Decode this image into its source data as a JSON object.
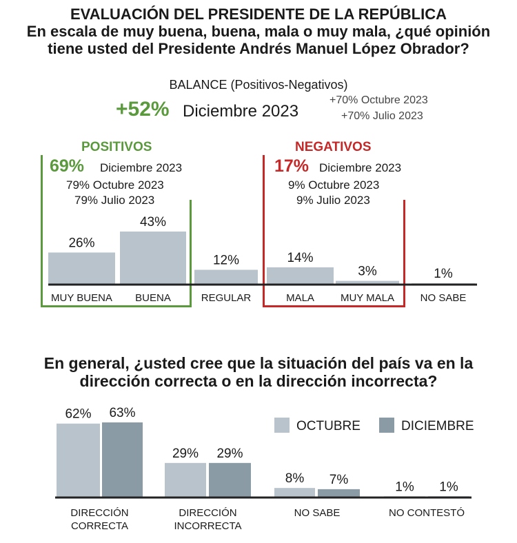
{
  "header": {
    "title": "EVALUACIÓN DEL PRESIDENTE DE LA REPÚBLICA",
    "question_line1": "En escala de muy buena, buena, mala o muy mala, ¿qué opinión",
    "question_line2": "tiene usted del Presidente Andrés Manuel López Obrador?"
  },
  "balance": {
    "label": "BALANCE (Positivos-Negativos)",
    "value": "+52%",
    "period": "Diciembre 2023",
    "prev1": "+70% Octubre 2023",
    "prev2": "+70% Julio 2023"
  },
  "positivos": {
    "label": "POSITIVOS",
    "value": "69%",
    "period": "Diciembre 2023",
    "prev1": "79% Octubre 2023",
    "prev2": "79% Julio 2023"
  },
  "negativos": {
    "label": "NEGATIVOS",
    "value": "17%",
    "period": "Diciembre 2023",
    "prev1": "9% Octubre 2023",
    "prev2": "9% Julio 2023"
  },
  "colors": {
    "positive": "#5a9a3c",
    "negative": "#c62828",
    "bar_light": "#b8c3cc",
    "bar_dark": "#8a9ba6",
    "axis": "#222222"
  },
  "chart_data": [
    {
      "type": "bar",
      "categories": [
        "MUY BUENA",
        "BUENA",
        "REGULAR",
        "MALA",
        "MUY MALA",
        "NO SABE"
      ],
      "values": [
        26,
        43,
        12,
        14,
        3,
        1
      ],
      "value_labels": [
        "26%",
        "43%",
        "12%",
        "14%",
        "3%",
        "1%"
      ],
      "ylim": [
        0,
        50
      ]
    },
    {
      "type": "bar",
      "title_line1": "En general, ¿usted cree que la situación del país va en la",
      "title_line2": "dirección correcta o en la dirección incorrecta?",
      "categories": [
        [
          "DIRECCIÓN",
          "CORRECTA"
        ],
        [
          "DIRECCIÓN",
          "INCORRECTA"
        ],
        [
          "NO SABE"
        ],
        [
          "NO CONTESTÓ"
        ]
      ],
      "series": [
        {
          "name": "OCTUBRE",
          "values": [
            62,
            29,
            8,
            1
          ],
          "value_labels": [
            "62%",
            "29%",
            "8%",
            "1%"
          ]
        },
        {
          "name": "DICIEMBRE",
          "values": [
            63,
            29,
            7,
            1
          ],
          "value_labels": [
            "63%",
            "29%",
            "7%",
            "1%"
          ]
        }
      ],
      "legend": "top-right",
      "ylim": [
        0,
        70
      ]
    }
  ]
}
